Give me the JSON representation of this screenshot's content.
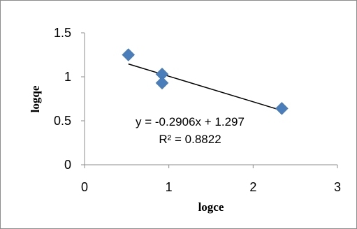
{
  "chart_data": {
    "type": "scatter",
    "title": "",
    "xlabel": "logce",
    "ylabel": "logqe",
    "xlim": [
      0,
      3
    ],
    "ylim": [
      0,
      1.5
    ],
    "x_ticks": [
      "0",
      "1",
      "2",
      "3"
    ],
    "y_ticks": [
      "0",
      "0.5",
      "1",
      "1.5"
    ],
    "grid": false,
    "legend": "none",
    "series": [
      {
        "marker": "diamond",
        "color": "#4a7ebb",
        "points": [
          {
            "x": 0.52,
            "y": 1.25
          },
          {
            "x": 0.92,
            "y": 1.03
          },
          {
            "x": 0.92,
            "y": 0.93
          },
          {
            "x": 2.34,
            "y": 0.64
          }
        ]
      }
    ],
    "trendline": {
      "type": "linear",
      "slope": -0.2906,
      "intercept": 1.297,
      "x_range": [
        0.52,
        2.34
      ],
      "color": "#000000",
      "equation_label": "y = -0.2906x + 1.297",
      "r2_label": "R² = 0.8822"
    }
  }
}
